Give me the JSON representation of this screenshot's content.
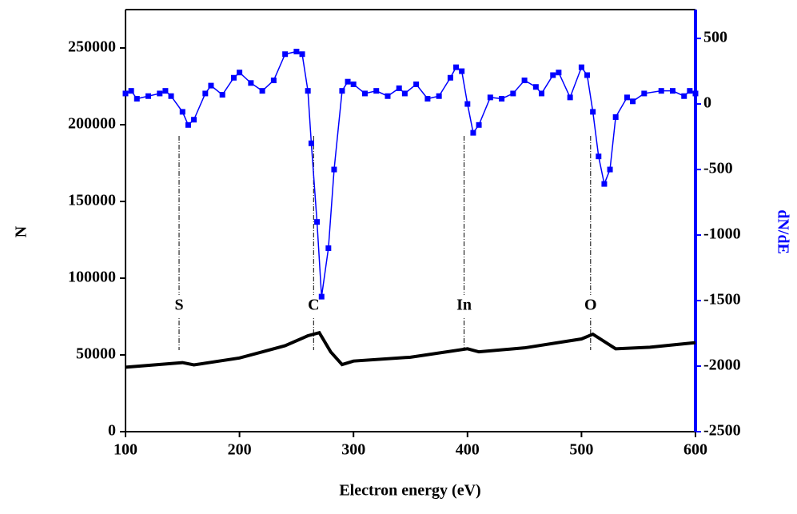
{
  "chart_data": {
    "type": "line",
    "x_label": "Electron energy (eV)",
    "y_label": "N",
    "y2_label": "dN/dE",
    "xlim": [
      100,
      600
    ],
    "xticks": [
      100,
      200,
      300,
      400,
      500,
      600
    ],
    "ylim": [
      0,
      275000
    ],
    "yticks": [
      0,
      50000,
      100000,
      150000,
      200000,
      250000
    ],
    "y2lim": [
      -2500,
      720
    ],
    "y2ticks": [
      -2500,
      -2000,
      -1500,
      -1000,
      -500,
      0,
      500
    ],
    "y2color": "#0000ff",
    "series": [
      {
        "color": "#000000",
        "axis": "y",
        "x": [
          100,
          150,
          160,
          200,
          220,
          240,
          260,
          270,
          280,
          290,
          300,
          350,
          400,
          410,
          450,
          500,
          510,
          530,
          560,
          600
        ],
        "values": [
          42000,
          45000,
          43500,
          48000,
          52000,
          56000,
          62500,
          64500,
          52000,
          43700,
          46000,
          48500,
          54000,
          52000,
          54600,
          60400,
          63500,
          54000,
          55000,
          58000
        ]
      },
      {
        "color": "#0000ff",
        "axis": "y2",
        "marker": "square",
        "x": [
          100,
          105,
          110,
          120,
          130,
          135,
          140,
          150,
          155,
          160,
          170,
          175,
          185,
          195,
          200,
          210,
          220,
          230,
          240,
          250,
          255,
          260,
          263,
          268,
          272,
          278,
          283,
          290,
          295,
          300,
          310,
          320,
          330,
          340,
          345,
          355,
          365,
          375,
          385,
          390,
          395,
          400,
          405,
          410,
          420,
          430,
          440,
          450,
          460,
          465,
          475,
          480,
          490,
          500,
          505,
          510,
          515,
          520,
          525,
          530,
          540,
          545,
          555,
          570,
          580,
          590,
          595,
          600
        ],
        "values": [
          80,
          100,
          40,
          60,
          80,
          100,
          60,
          -60,
          -160,
          -120,
          80,
          140,
          70,
          200,
          240,
          160,
          100,
          180,
          380,
          400,
          380,
          100,
          -300,
          -900,
          -1470,
          -1100,
          -500,
          100,
          170,
          150,
          80,
          100,
          60,
          120,
          80,
          150,
          40,
          60,
          200,
          280,
          250,
          0,
          -220,
          -160,
          50,
          40,
          80,
          180,
          130,
          80,
          220,
          240,
          50,
          280,
          220,
          -60,
          -400,
          -610,
          -500,
          -100,
          50,
          20,
          80,
          100,
          100,
          60,
          100,
          80
        ]
      }
    ],
    "annotations": [
      {
        "text": "S",
        "x": 147
      },
      {
        "text": "C",
        "x": 265
      },
      {
        "text": "In",
        "x": 397
      },
      {
        "text": "O",
        "x": 508
      }
    ]
  }
}
